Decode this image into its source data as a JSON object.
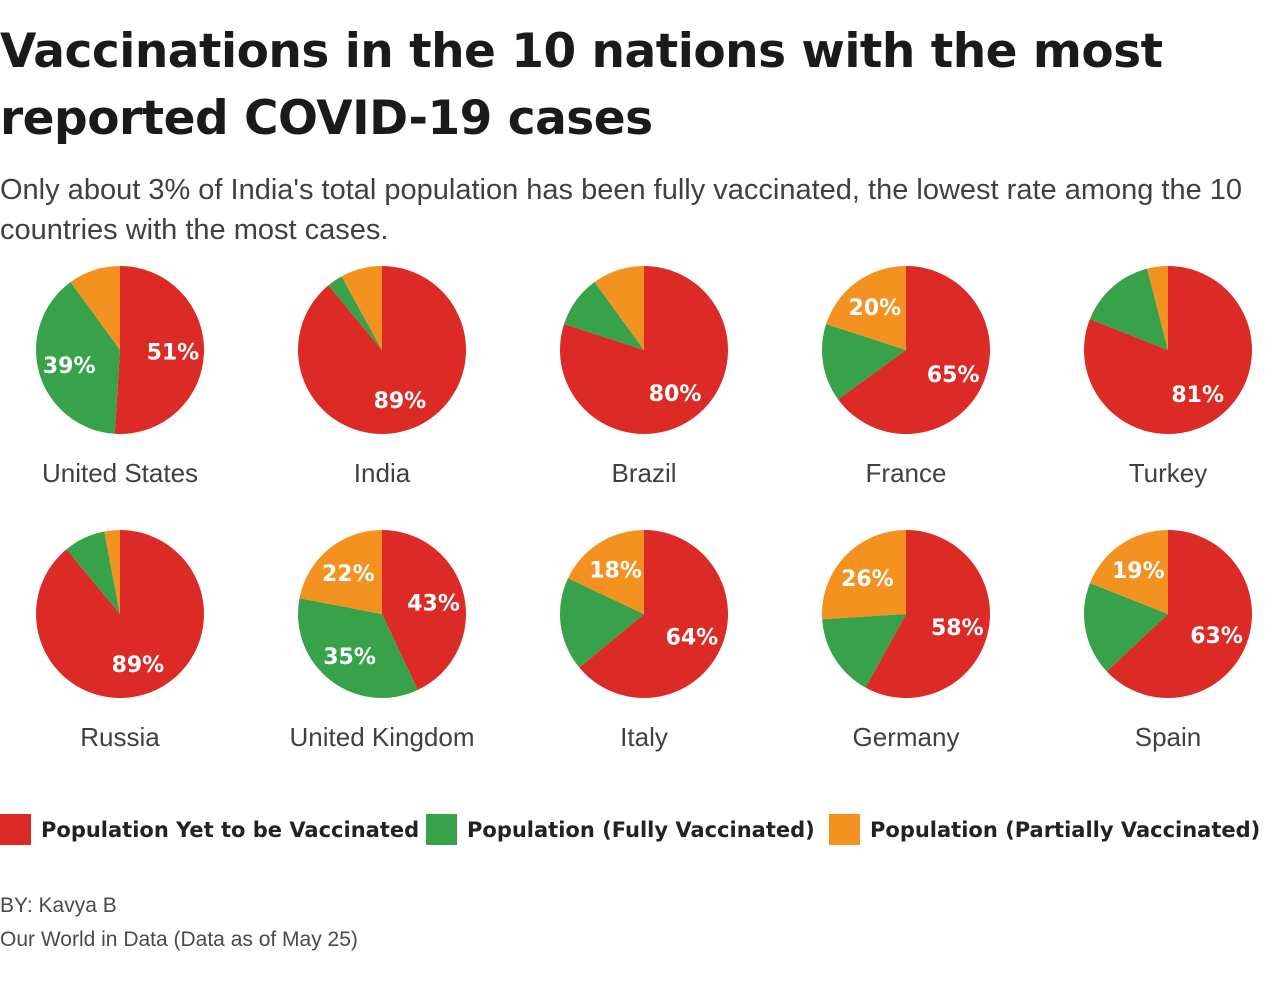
{
  "title": "Vaccinations in the 10 nations with the most reported COVID-19 cases",
  "subtitle": "Only about 3% of India's total population has been fully vaccinated, the lowest rate among the 10 countries with the most cases.",
  "colors": {
    "yet": "#dc2b27",
    "full": "#37a24a",
    "partial": "#f39221"
  },
  "legend": [
    {
      "key": "yet",
      "label": "Population Yet to be Vaccinated"
    },
    {
      "key": "full",
      "label": "Population (Fully Vaccinated)"
    },
    {
      "key": "partial",
      "label": "Population (Partially Vaccinated)"
    }
  ],
  "chart_data": {
    "type": "pie",
    "series_order": [
      "yet",
      "full",
      "partial"
    ],
    "pies": [
      {
        "country": "United States",
        "yet": 51,
        "full": 39,
        "partial": 10,
        "labels": {
          "yet": "51%",
          "full": "39%"
        }
      },
      {
        "country": "India",
        "yet": 89,
        "full": 3,
        "partial": 8,
        "labels": {
          "yet": "89%"
        }
      },
      {
        "country": "Brazil",
        "yet": 80,
        "full": 10,
        "partial": 10,
        "labels": {
          "yet": "80%"
        }
      },
      {
        "country": "France",
        "yet": 65,
        "full": 15,
        "partial": 20,
        "labels": {
          "yet": "65%",
          "partial": "20%"
        }
      },
      {
        "country": "Turkey",
        "yet": 81,
        "full": 15,
        "partial": 4,
        "labels": {
          "yet": "81%"
        }
      },
      {
        "country": "Russia",
        "yet": 89,
        "full": 8,
        "partial": 3,
        "labels": {
          "yet": "89%"
        }
      },
      {
        "country": "United Kingdom",
        "yet": 43,
        "full": 35,
        "partial": 22,
        "labels": {
          "yet": "43%",
          "full": "35%",
          "partial": "22%"
        }
      },
      {
        "country": "Italy",
        "yet": 64,
        "full": 18,
        "partial": 18,
        "labels": {
          "yet": "64%",
          "partial": "18%"
        }
      },
      {
        "country": "Germany",
        "yet": 58,
        "full": 16,
        "partial": 26,
        "labels": {
          "yet": "58%",
          "partial": "26%"
        }
      },
      {
        "country": "Spain",
        "yet": 63,
        "full": 18,
        "partial": 19,
        "labels": {
          "yet": "63%",
          "partial": "19%"
        }
      }
    ]
  },
  "byline": "BY: Kavya B",
  "source": "Our World in Data (Data as of May 25)"
}
